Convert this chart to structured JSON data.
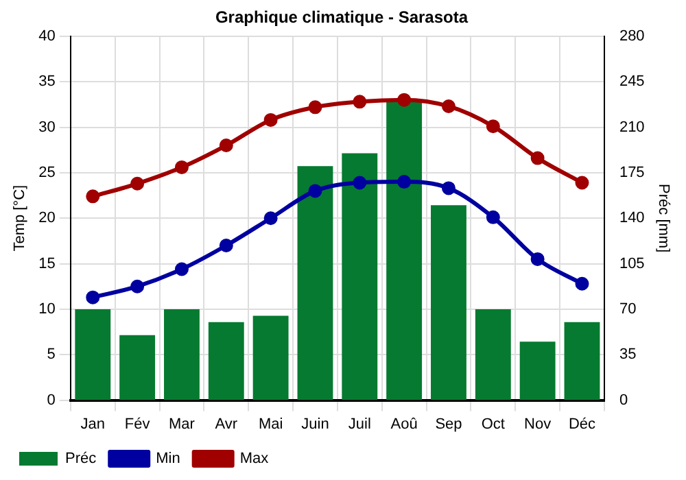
{
  "chart_data": {
    "type": "bar",
    "title": "Graphique climatique - Sarasota",
    "ylabel": "Temp [°C]",
    "y2label": "Préc [mm]",
    "categories": [
      "Jan",
      "Fév",
      "Mar",
      "Avr",
      "Mai",
      "Juin",
      "Juil",
      "Aoû",
      "Sep",
      "Oct",
      "Nov",
      "Déc"
    ],
    "series": [
      {
        "name": "Préc",
        "axis": "y2",
        "color": "#067a30",
        "values": [
          70,
          50,
          70,
          60,
          65,
          180,
          190,
          230,
          150,
          70,
          45,
          60
        ]
      },
      {
        "name": "Min",
        "type": "line",
        "color": "#0000a0",
        "values": [
          11.3,
          12.5,
          14.4,
          17.0,
          20.0,
          23.0,
          23.9,
          24.0,
          23.3,
          20.1,
          15.5,
          12.8
        ]
      },
      {
        "name": "Max",
        "type": "line",
        "color": "#a00000",
        "values": [
          22.4,
          23.8,
          25.6,
          28.0,
          30.8,
          32.2,
          32.8,
          33.0,
          32.3,
          30.1,
          26.6,
          23.9
        ]
      }
    ],
    "ylim": [
      0,
      40
    ],
    "yticks": [
      0,
      5,
      10,
      15,
      20,
      25,
      30,
      35,
      40
    ],
    "y2lim": [
      0,
      280
    ],
    "y2ticks": [
      0,
      35,
      70,
      105,
      140,
      175,
      210,
      245,
      280
    ],
    "grid": true,
    "legend": "bottom",
    "marker": "circle",
    "line_style": "solid"
  }
}
